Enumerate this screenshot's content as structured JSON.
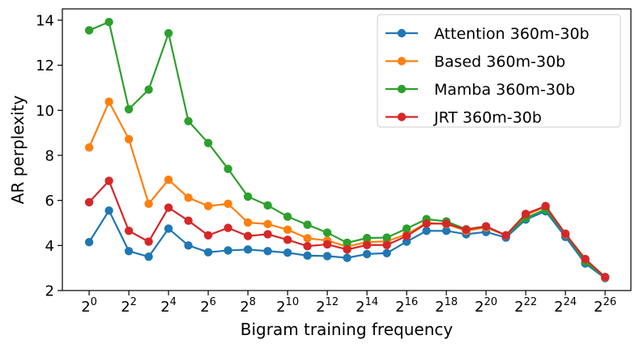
{
  "chart_data": {
    "type": "line",
    "title": "",
    "xlabel": "Bigram training frequency",
    "ylabel": "AR perplexity",
    "x_exponents": [
      0,
      1,
      2,
      3,
      4,
      5,
      6,
      7,
      8,
      9,
      10,
      11,
      12,
      13,
      14,
      15,
      16,
      17,
      18,
      19,
      20,
      21,
      22,
      23,
      24,
      25,
      26
    ],
    "x_ticks": [
      {
        "base": "2",
        "exp": "0",
        "value": 0
      },
      {
        "base": "2",
        "exp": "2",
        "value": 2
      },
      {
        "base": "2",
        "exp": "4",
        "value": 4
      },
      {
        "base": "2",
        "exp": "6",
        "value": 6
      },
      {
        "base": "2",
        "exp": "8",
        "value": 8
      },
      {
        "base": "2",
        "exp": "10",
        "value": 10
      },
      {
        "base": "2",
        "exp": "12",
        "value": 12
      },
      {
        "base": "2",
        "exp": "14",
        "value": 14
      },
      {
        "base": "2",
        "exp": "16",
        "value": 16
      },
      {
        "base": "2",
        "exp": "18",
        "value": 18
      },
      {
        "base": "2",
        "exp": "20",
        "value": 20
      },
      {
        "base": "2",
        "exp": "22",
        "value": 22
      },
      {
        "base": "2",
        "exp": "24",
        "value": 24
      },
      {
        "base": "2",
        "exp": "26",
        "value": 26
      }
    ],
    "y_ticks": [
      {
        "label": "2",
        "value": 2
      },
      {
        "label": "4",
        "value": 4
      },
      {
        "label": "6",
        "value": 6
      },
      {
        "label": "8",
        "value": 8
      },
      {
        "label": "10",
        "value": 10
      },
      {
        "label": "12",
        "value": 12
      },
      {
        "label": "14",
        "value": 14
      }
    ],
    "xlim": [
      -1.35,
      27.3
    ],
    "ylim": [
      2.0,
      14.5
    ],
    "legend_position": "top-right",
    "series": [
      {
        "name": "Attention 360m-30b",
        "color": "#1f77b4",
        "values": [
          4.15,
          5.55,
          3.75,
          3.5,
          4.75,
          4.0,
          3.7,
          3.78,
          3.82,
          3.75,
          3.68,
          3.55,
          3.53,
          3.45,
          3.62,
          3.66,
          4.17,
          4.65,
          4.65,
          4.5,
          4.6,
          4.35,
          5.15,
          5.52,
          4.38,
          3.2,
          2.55
        ]
      },
      {
        "name": "Based 360m-30b",
        "color": "#ff7f0e",
        "values": [
          8.35,
          10.38,
          8.72,
          5.85,
          6.92,
          6.12,
          5.75,
          5.85,
          5.02,
          4.95,
          4.7,
          4.32,
          4.22,
          3.95,
          4.15,
          4.18,
          4.5,
          5.0,
          4.95,
          4.65,
          4.8,
          4.45,
          5.35,
          5.72,
          4.5,
          3.35,
          2.58
        ]
      },
      {
        "name": "Mamba 360m-30b",
        "color": "#2ca02c",
        "values": [
          13.55,
          13.92,
          10.05,
          10.92,
          13.42,
          9.52,
          8.55,
          7.4,
          6.17,
          5.78,
          5.28,
          4.92,
          4.57,
          4.12,
          4.33,
          4.35,
          4.75,
          5.17,
          5.07,
          4.72,
          4.85,
          4.45,
          5.22,
          5.6,
          4.52,
          3.28,
          2.6
        ]
      },
      {
        "name": "JRT 360m-30b",
        "color": "#d62728",
        "values": [
          5.92,
          6.87,
          4.65,
          4.17,
          5.68,
          5.1,
          4.45,
          4.78,
          4.42,
          4.5,
          4.25,
          3.97,
          4.05,
          3.82,
          4.02,
          4.02,
          4.42,
          4.97,
          4.97,
          4.7,
          4.85,
          4.45,
          5.4,
          5.75,
          4.52,
          3.4,
          2.6
        ]
      }
    ]
  }
}
